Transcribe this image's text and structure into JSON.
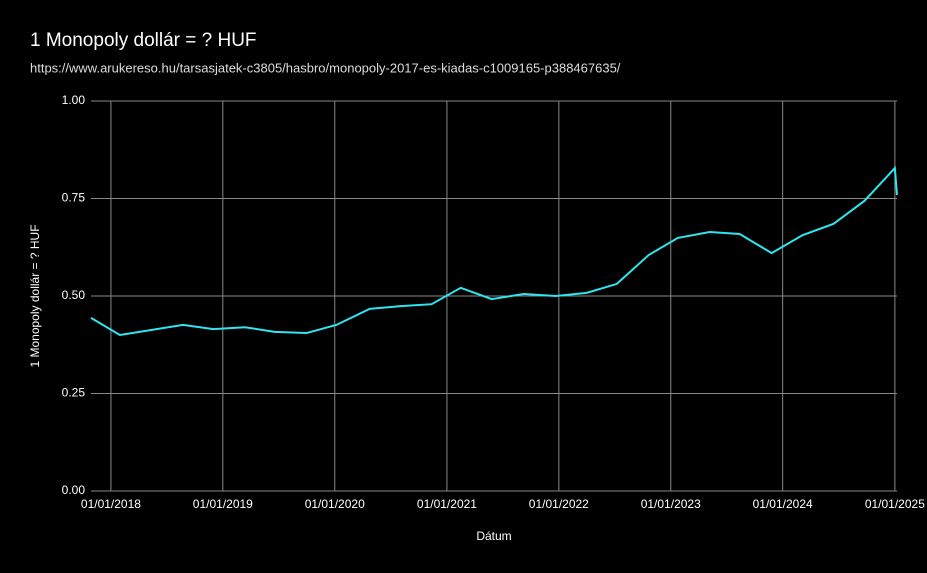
{
  "chart_data": {
    "type": "line",
    "title": "1 Monopoly dollár = ? HUF",
    "subtitle": "https://www.arukereso.hu/tarsasjatek-c3805/hasbro/monopoly-2017-es-kiadas-c1009165-p388467635/",
    "x_label": "Dátum",
    "y_label": "1 Monopoly dollár = ? HUF",
    "x": [
      "2017-10-28",
      "2018-01-30",
      "2018-08-24",
      "2018-12-01",
      "2019-03-14",
      "2019-06-19",
      "2019-10-01",
      "2020-01-07",
      "2020-04-24",
      "2020-08-03",
      "2020-11-12",
      "2021-02-15",
      "2021-05-27",
      "2021-09-08",
      "2021-12-22",
      "2022-04-02",
      "2022-07-09",
      "2022-10-21",
      "2023-01-24",
      "2023-05-08",
      "2023-08-14",
      "2023-11-26",
      "2024-03-06",
      "2024-06-15",
      "2024-09-24",
      "2025-01-01",
      "2025-01-08"
    ],
    "series": [
      {
        "name": "1 Monopoly dollár = ? HUF",
        "color": "#2ee6f0",
        "values": [
          0.444,
          0.4,
          0.426,
          0.415,
          0.42,
          0.408,
          0.405,
          0.426,
          0.467,
          0.474,
          0.479,
          0.521,
          0.492,
          0.505,
          0.5,
          0.508,
          0.531,
          0.605,
          0.649,
          0.664,
          0.659,
          0.61,
          0.656,
          0.685,
          0.744,
          0.828,
          0.759
        ]
      }
    ],
    "xlim": [
      "2017-10-28",
      "2025-01-08"
    ],
    "xticks": [
      {
        "value": "2018-01-01",
        "label": "01/01/2018"
      },
      {
        "value": "2019-01-01",
        "label": "01/01/2019"
      },
      {
        "value": "2020-01-01",
        "label": "01/01/2020"
      },
      {
        "value": "2021-01-01",
        "label": "01/01/2021"
      },
      {
        "value": "2022-01-01",
        "label": "01/01/2022"
      },
      {
        "value": "2023-01-01",
        "label": "01/01/2023"
      },
      {
        "value": "2024-01-01",
        "label": "01/01/2024"
      },
      {
        "value": "2025-01-01",
        "label": "01/01/2025"
      }
    ],
    "ylim": [
      0,
      1
    ],
    "yticks": [
      {
        "value": 0,
        "label": "0.00"
      },
      {
        "value": 0.25,
        "label": "0.25"
      },
      {
        "value": 0.5,
        "label": "0.50"
      },
      {
        "value": 0.75,
        "label": "0.75"
      },
      {
        "value": 1,
        "label": "1.00"
      }
    ],
    "grid": true
  }
}
